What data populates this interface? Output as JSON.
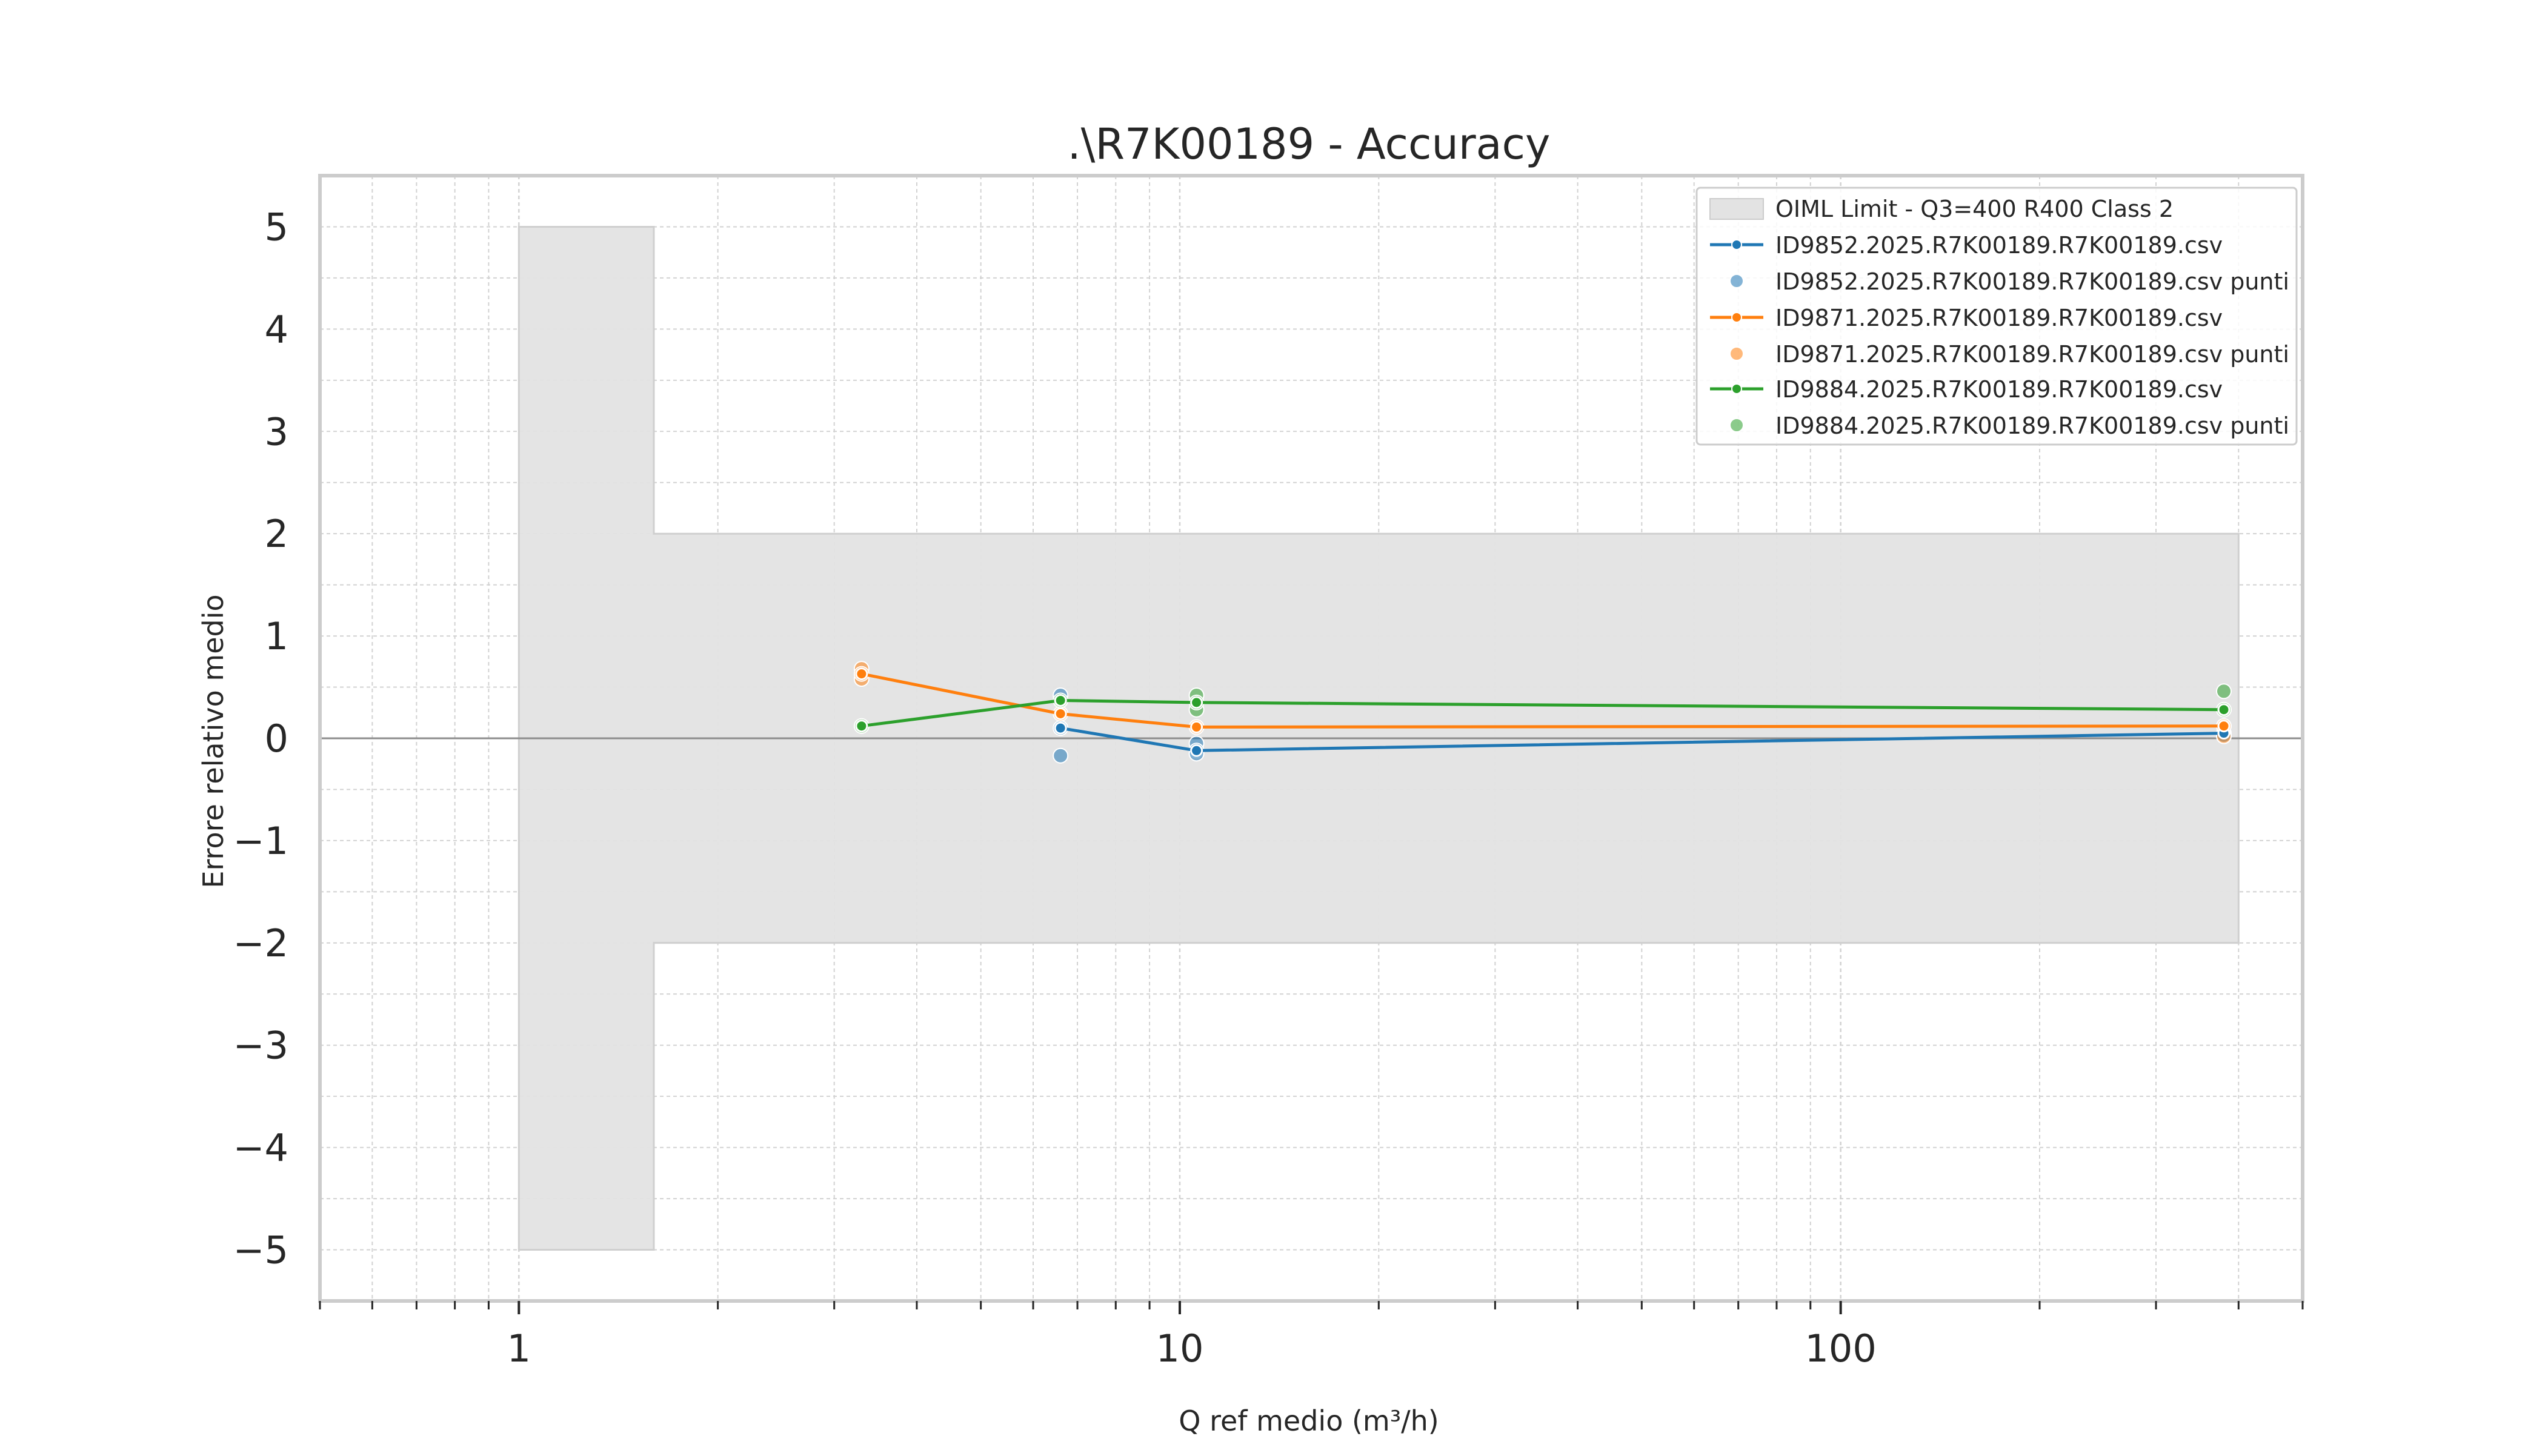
{
  "chart_data": {
    "type": "line",
    "title": ".\\R7K00189 - Accuracy",
    "xlabel": "Q ref medio (m³/h)",
    "ylabel": "Errore relativo medio",
    "xscale": "log",
    "xlim": [
      0.5,
      500
    ],
    "ylim": [
      -5.5,
      5.5
    ],
    "x_ticks": [
      {
        "value": 1,
        "label": "1"
      },
      {
        "value": 10,
        "label": "10"
      },
      {
        "value": 100,
        "label": "100"
      }
    ],
    "y_ticks": [
      {
        "value": 5,
        "label": "5"
      },
      {
        "value": 4,
        "label": "4"
      },
      {
        "value": 3,
        "label": "3"
      },
      {
        "value": 2,
        "label": "2"
      },
      {
        "value": 1,
        "label": "1"
      },
      {
        "value": 0,
        "label": "0"
      },
      {
        "value": -1,
        "label": "−1"
      },
      {
        "value": -2,
        "label": "−2"
      },
      {
        "value": -3,
        "label": "−3"
      },
      {
        "value": -4,
        "label": "−4"
      },
      {
        "value": -5,
        "label": "−5"
      }
    ],
    "grid": true,
    "legend_position": "top-right",
    "limit_band": {
      "label": "OIML Limit - Q3=400 R400 Class 2",
      "color": "#e3e3e3",
      "segments": [
        {
          "x_from": 1.0,
          "x_to": 1.6,
          "lower": -5,
          "upper": 5
        },
        {
          "x_from": 1.6,
          "x_to": 400,
          "lower": -2,
          "upper": 2
        }
      ]
    },
    "series": [
      {
        "name": "ID9852.2025.R7K00189.R7K00189.csv",
        "points_name": "ID9852.2025.R7K00189.R7K00189.csv punti",
        "color": "#1f77b4",
        "line": [
          {
            "x": 6.6,
            "y": 0.1
          },
          {
            "x": 10.6,
            "y": -0.12
          },
          {
            "x": 380,
            "y": 0.05
          }
        ],
        "points": [
          {
            "x": 6.6,
            "y": 0.42
          },
          {
            "x": 6.6,
            "y": 0.1
          },
          {
            "x": 6.6,
            "y": -0.17
          },
          {
            "x": 10.6,
            "y": -0.05
          },
          {
            "x": 10.6,
            "y": -0.12
          },
          {
            "x": 10.6,
            "y": -0.15
          },
          {
            "x": 380,
            "y": 0.05
          },
          {
            "x": 380,
            "y": 0.03
          }
        ]
      },
      {
        "name": "ID9871.2025.R7K00189.R7K00189.csv",
        "points_name": "ID9871.2025.R7K00189.R7K00189.csv punti",
        "color": "#ff7f0e",
        "line": [
          {
            "x": 3.3,
            "y": 0.63
          },
          {
            "x": 6.6,
            "y": 0.24
          },
          {
            "x": 10.6,
            "y": 0.11
          },
          {
            "x": 380,
            "y": 0.12
          }
        ],
        "points": [
          {
            "x": 3.3,
            "y": 0.68
          },
          {
            "x": 3.3,
            "y": 0.58
          },
          {
            "x": 3.3,
            "y": 0.63
          },
          {
            "x": 6.6,
            "y": 0.24
          },
          {
            "x": 10.6,
            "y": 0.11
          },
          {
            "x": 380,
            "y": 0.12
          },
          {
            "x": 380,
            "y": 0.02
          }
        ]
      },
      {
        "name": "ID9884.2025.R7K00189.R7K00189.csv",
        "points_name": "ID9884.2025.R7K00189.R7K00189.csv punti",
        "color": "#2ca02c",
        "line": [
          {
            "x": 3.3,
            "y": 0.12
          },
          {
            "x": 6.6,
            "y": 0.37
          },
          {
            "x": 10.6,
            "y": 0.35
          },
          {
            "x": 380,
            "y": 0.28
          }
        ],
        "points": [
          {
            "x": 3.3,
            "y": 0.12
          },
          {
            "x": 6.6,
            "y": 0.37
          },
          {
            "x": 10.6,
            "y": 0.42
          },
          {
            "x": 10.6,
            "y": 0.28
          },
          {
            "x": 10.6,
            "y": 0.35
          },
          {
            "x": 380,
            "y": 0.46
          },
          {
            "x": 380,
            "y": 0.28
          }
        ]
      }
    ]
  }
}
